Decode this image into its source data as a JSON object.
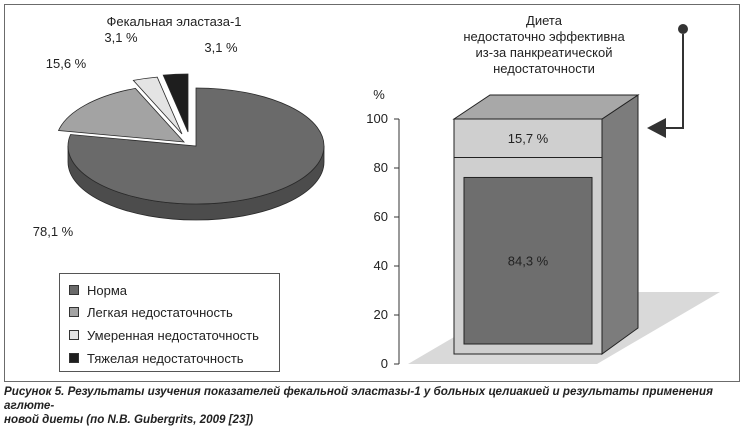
{
  "chart_data": [
    {
      "type": "pie",
      "title": "Фекальная эластаза-1",
      "series": [
        {
          "name": "Норма",
          "value": 78.1,
          "label": "78,1 %",
          "color": "#6a6a6a"
        },
        {
          "name": "Легкая недостаточность",
          "value": 15.6,
          "label": "15,6 %",
          "color": "#a3a3a3"
        },
        {
          "name": "Умеренная недостаточность",
          "value": 3.1,
          "label": "3,1 %",
          "color": "#e4e4e4"
        },
        {
          "name": "Тяжелая недостаточность",
          "value": 3.1,
          "label": "3,1 %",
          "color": "#1e1e1e"
        }
      ],
      "legend_position": "bottom-left"
    },
    {
      "type": "bar",
      "stacked": true,
      "title": "Диета недостаточно эффективна из-за панкреатической недостаточности",
      "ylabel": "%",
      "ylim": [
        0,
        100
      ],
      "yticks": [
        0,
        20,
        40,
        60,
        80,
        100
      ],
      "series": [
        {
          "value": 84.3,
          "label": "84,3 %",
          "color": "#6e6e6e"
        },
        {
          "value": 15.7,
          "label": "15,7 %",
          "color": "#c6c6c6"
        }
      ]
    }
  ],
  "legend": {
    "items": [
      {
        "label": "Норма",
        "color": "#6a6a6a"
      },
      {
        "label": "Легкая недостаточность",
        "color": "#a3a3a3"
      },
      {
        "label": "Умеренная недостаточность",
        "color": "#e4e4e4"
      },
      {
        "label": "Тяжелая недостаточность",
        "color": "#1e1e1e"
      }
    ]
  },
  "annotation": {
    "lines": [
      "Диета",
      "недостаточно эффективна",
      "из-за панкреатической",
      "недостаточности"
    ],
    "arrow_icon": "arrow-pointer-icon"
  },
  "caption": {
    "line1": "Рисунок 5. Результаты изучения показателей фекальной эластазы-1 у больных целиакией и результаты применения аглюте-",
    "line2": "новой диеты (по N.B. Gubergrits, 2009 [23])"
  }
}
